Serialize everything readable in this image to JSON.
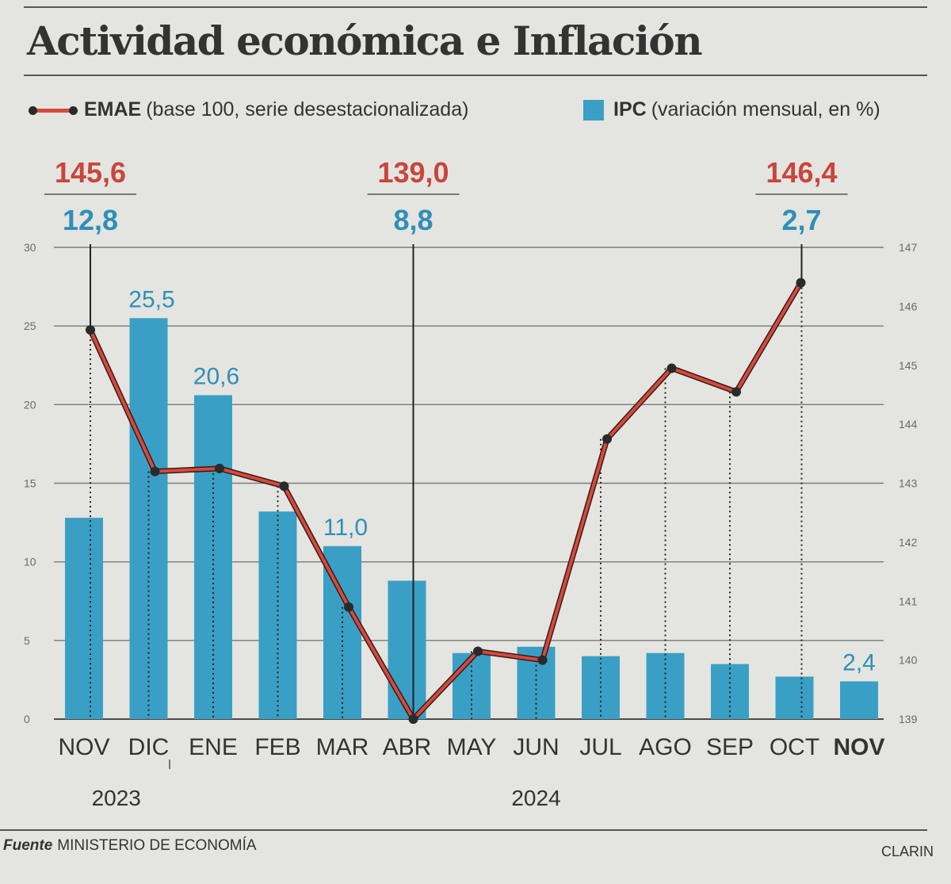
{
  "title": "Actividad económica e Inflación",
  "legend": {
    "line": {
      "name": "EMAE",
      "desc": "(base 100, serie desestacionalizada)"
    },
    "bars": {
      "name": "IPC",
      "desc": "(variación mensual, en %)"
    }
  },
  "colors": {
    "line": "#d44a3c",
    "marker": "#2a2a2a",
    "bars": "#3a9fc4",
    "bar_label": "#2f8fb8",
    "annotation_red": "#c8463b"
  },
  "chart_data": {
    "type": "bar",
    "categories": [
      "NOV",
      "DIC",
      "ENE",
      "FEB",
      "MAR",
      "ABR",
      "MAY",
      "JUN",
      "JUL",
      "AGO",
      "SEP",
      "OCT",
      "NOV"
    ],
    "years": [
      {
        "label": "2023",
        "spans": [
          "NOV",
          "DIC"
        ]
      },
      {
        "label": "2024",
        "spans": [
          "ENE",
          "NOV"
        ]
      }
    ],
    "series": [
      {
        "name": "IPC",
        "type": "bar",
        "axis": "left",
        "values": [
          12.8,
          25.5,
          20.6,
          13.2,
          11.0,
          8.8,
          4.2,
          4.6,
          4.0,
          4.2,
          3.5,
          2.7,
          2.4
        ],
        "labels": [
          "",
          "25,5",
          "20,6",
          "",
          "11,0",
          "",
          "",
          "",
          "",
          "",
          "",
          "",
          "2,4"
        ]
      },
      {
        "name": "EMAE",
        "type": "line",
        "axis": "right",
        "values": [
          145.6,
          143.2,
          143.25,
          142.95,
          140.9,
          139.0,
          140.15,
          140.0,
          143.75,
          144.95,
          144.55,
          146.4,
          null
        ]
      }
    ],
    "left_axis": {
      "min": 0,
      "max": 30,
      "ticks": [
        0,
        5,
        10,
        15,
        20,
        25,
        30
      ]
    },
    "right_axis": {
      "min": 139,
      "max": 147,
      "ticks": [
        139,
        140,
        141,
        142,
        143,
        144,
        145,
        146,
        147
      ]
    },
    "annotations": [
      {
        "index": 0,
        "emae": "145,6",
        "ipc": "12,8"
      },
      {
        "index": 5,
        "emae": "139,0",
        "ipc": "8,8"
      },
      {
        "index": 11,
        "emae": "146,4",
        "ipc": "2,7"
      }
    ],
    "grid": true
  },
  "footer": {
    "source_label": "Fuente",
    "source": "MINISTERIO DE ECONOMÍA",
    "credit": "CLARIN"
  }
}
